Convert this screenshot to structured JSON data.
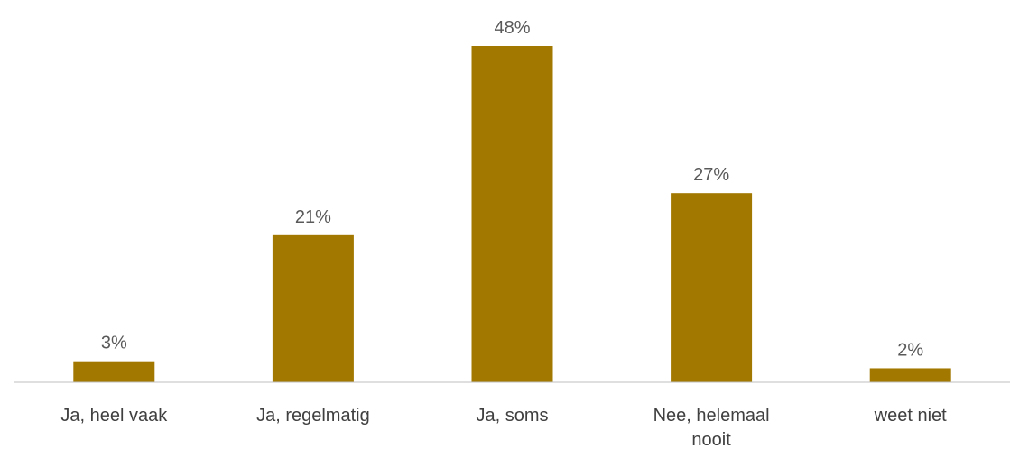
{
  "chart_data": {
    "type": "bar",
    "categories": [
      [
        "Ja, heel vaak"
      ],
      [
        "Ja, regelmatig"
      ],
      [
        "Ja, soms"
      ],
      [
        "Nee, helemaal",
        "nooit"
      ],
      [
        "weet niet"
      ]
    ],
    "values": [
      3,
      21,
      48,
      27,
      2
    ],
    "value_labels": [
      "3%",
      "21%",
      "48%",
      "27%",
      "2%"
    ],
    "ylim": [
      0,
      48
    ],
    "grid": false,
    "colors": {
      "bar": "#A37800",
      "axis": "#BFBFBF"
    }
  }
}
